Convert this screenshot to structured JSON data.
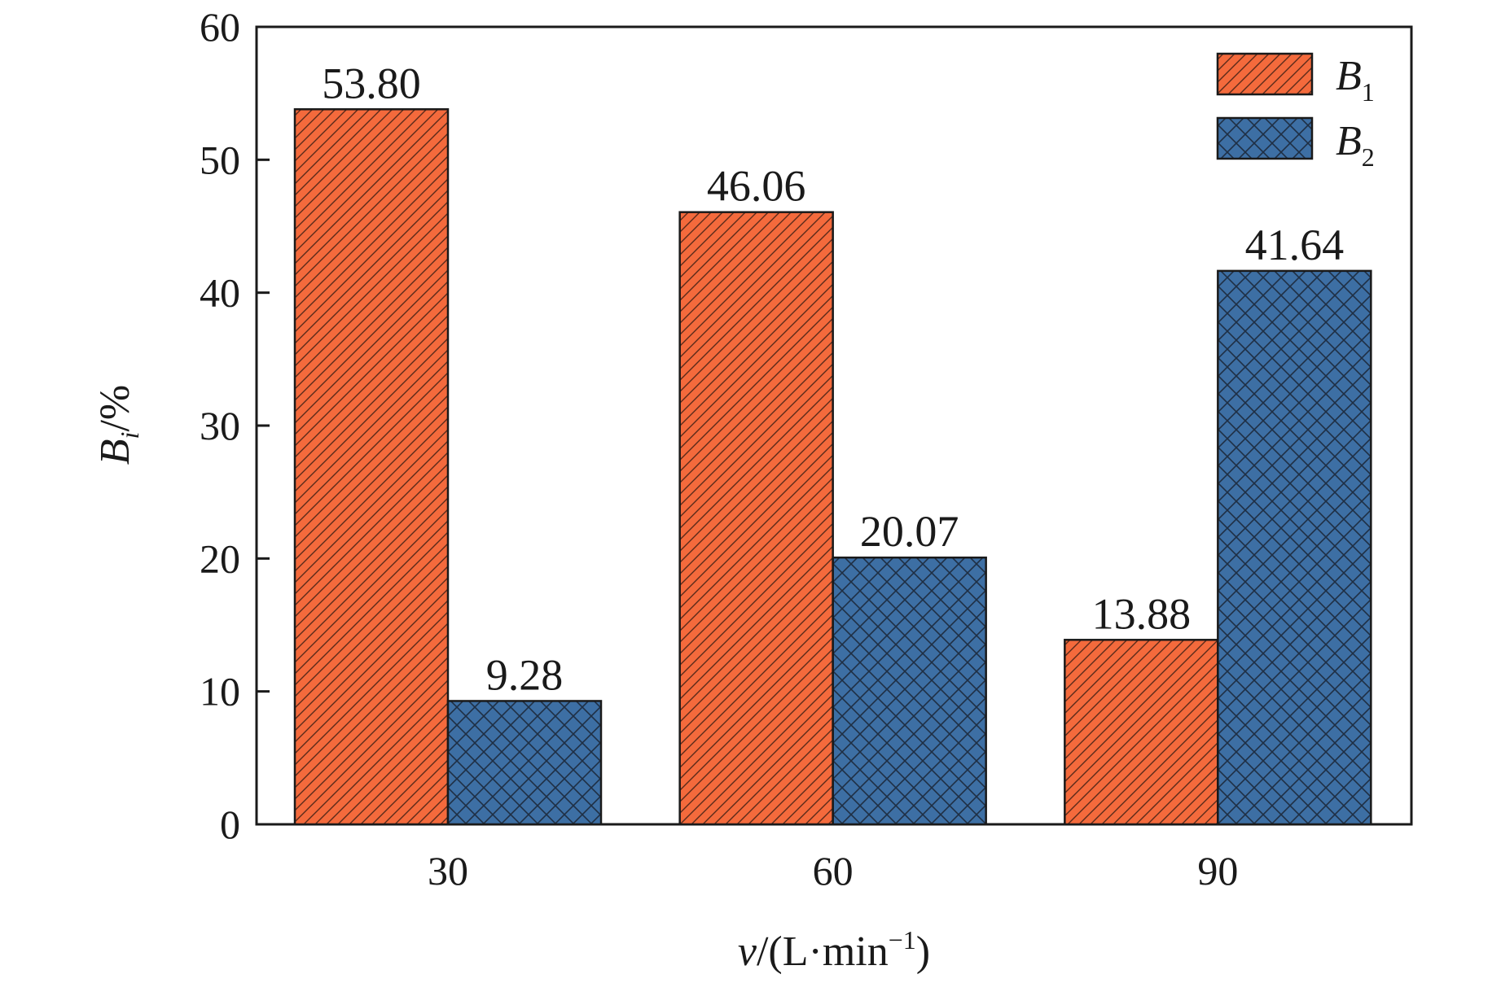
{
  "chart_data": {
    "type": "bar",
    "categories": [
      "30",
      "60",
      "90"
    ],
    "series": [
      {
        "name": "B1",
        "label_main": "B",
        "label_sub": "1",
        "color": "#f46a3c",
        "values": [
          53.8,
          46.06,
          13.88
        ],
        "value_labels": [
          "53.80",
          "46.06",
          "13.88"
        ]
      },
      {
        "name": "B2",
        "label_main": "B",
        "label_sub": "2",
        "color": "#3d6fa4",
        "values": [
          9.28,
          20.07,
          41.64
        ],
        "value_labels": [
          "9.28",
          "20.07",
          "41.64"
        ]
      }
    ],
    "ylim": [
      0,
      60
    ],
    "yticks": [
      "0",
      "10",
      "20",
      "30",
      "40",
      "50",
      "60"
    ],
    "ytick_values": [
      0,
      10,
      20,
      30,
      40,
      50,
      60
    ],
    "xlabel": {
      "var": "v",
      "text": "/(L·min",
      "sup": "−1",
      "close": ")"
    },
    "ylabel": {
      "var": "B",
      "sub": "i",
      "text": "/%"
    },
    "legend_position": "top-right",
    "grid": false
  }
}
